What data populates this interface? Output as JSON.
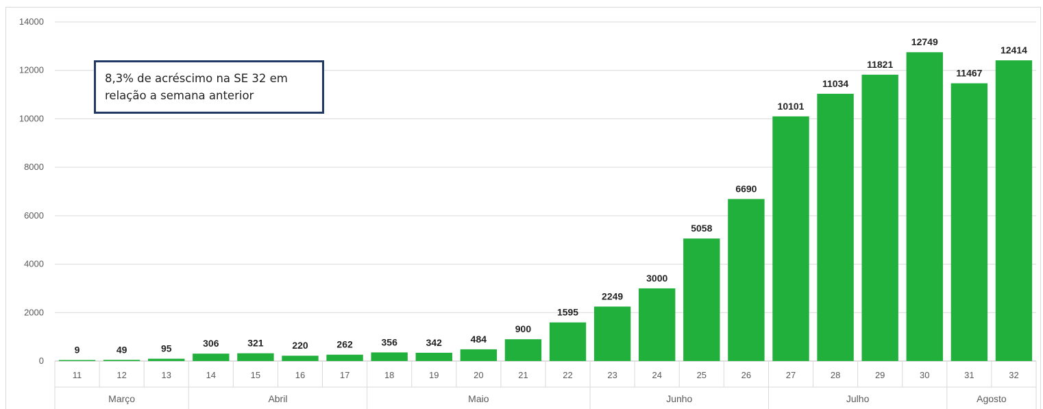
{
  "chart_data": {
    "type": "bar",
    "categories": [
      "11",
      "12",
      "13",
      "14",
      "15",
      "16",
      "17",
      "18",
      "19",
      "20",
      "21",
      "22",
      "23",
      "24",
      "25",
      "26",
      "27",
      "28",
      "29",
      "30",
      "31",
      "32"
    ],
    "values": [
      9,
      49,
      95,
      306,
      321,
      220,
      262,
      356,
      342,
      484,
      900,
      1595,
      2249,
      3000,
      5058,
      6690,
      10101,
      11034,
      11821,
      12749,
      11467,
      12414
    ],
    "data_labels": [
      "9",
      "49",
      "95",
      "306",
      "321",
      "220",
      "262",
      "356",
      "342",
      "484",
      "900",
      "1595",
      "2249",
      "3000",
      "5058",
      "6690",
      "10101",
      "11034",
      "11821",
      "12749",
      "11467",
      "12414"
    ],
    "groups": [
      {
        "label": "Março",
        "count": 3
      },
      {
        "label": "Abril",
        "count": 4
      },
      {
        "label": "Maio",
        "count": 5
      },
      {
        "label": "Junho",
        "count": 4
      },
      {
        "label": "Julho",
        "count": 4
      },
      {
        "label": "Agosto",
        "count": 2
      }
    ],
    "yticks": [
      "0",
      "2000",
      "4000",
      "6000",
      "8000",
      "10000",
      "12000",
      "14000"
    ],
    "ylim": [
      0,
      14000
    ],
    "title": "",
    "xlabel": "",
    "ylabel": "",
    "grid": true,
    "legend": "none",
    "bar_color": "#21b03c",
    "annotation": {
      "line1": "8,3% de acréscimo na SE 32 em",
      "line2": "relação a semana anterior"
    }
  }
}
